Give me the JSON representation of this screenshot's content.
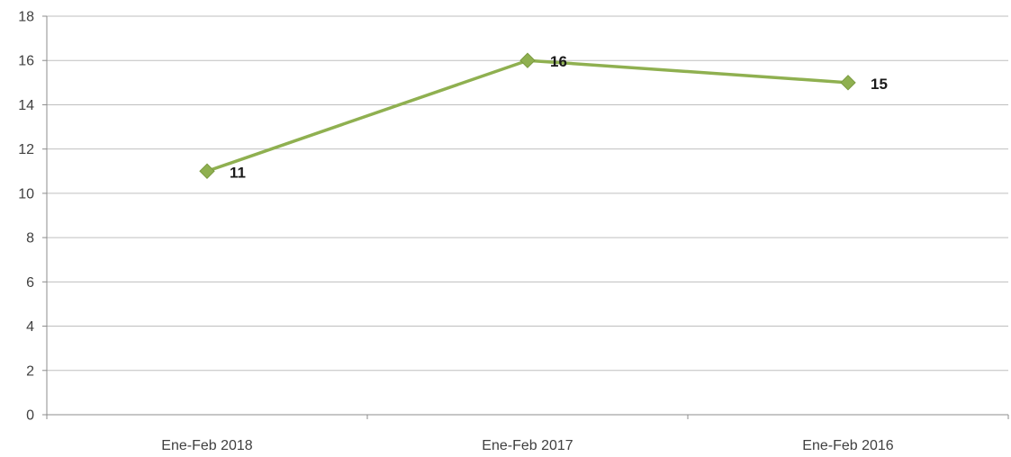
{
  "chart_data": {
    "type": "line",
    "title": "",
    "xlabel": "",
    "ylabel": "",
    "categories": [
      "Ene-Feb 2018",
      "Ene-Feb 2017",
      "Ene-Feb 2016"
    ],
    "series": [
      {
        "values": [
          11,
          16,
          15
        ],
        "color": "#8fb050",
        "marker": "diamond",
        "show_data_labels": true
      }
    ],
    "ylim": [
      0,
      18
    ],
    "yticks": [
      0,
      2,
      4,
      6,
      8,
      10,
      12,
      14,
      16,
      18
    ],
    "grid": true,
    "legend": "none"
  }
}
